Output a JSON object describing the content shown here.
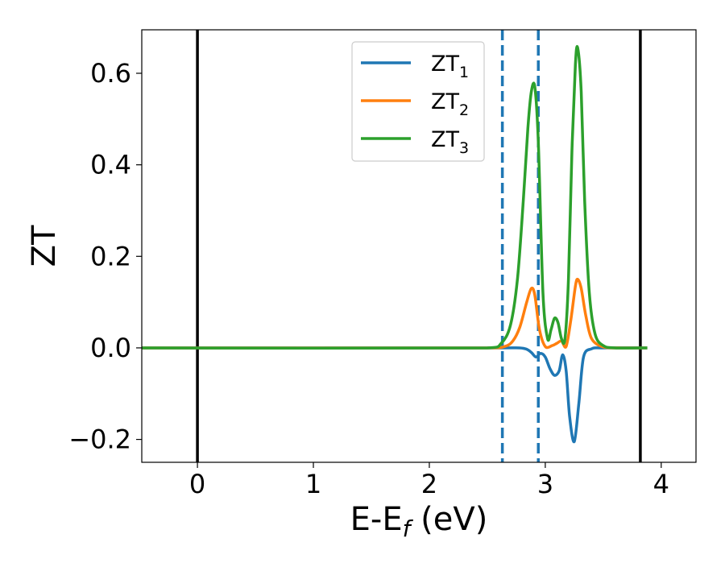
{
  "chart_data": {
    "type": "line",
    "title": "",
    "xlabel": {
      "main": "E-E",
      "sub": "f",
      "suffix": " (eV)"
    },
    "ylabel": "ZT",
    "xlim": [
      -0.48,
      4.3
    ],
    "ylim": [
      -0.25,
      0.695
    ],
    "xticks": [
      {
        "value": 0,
        "label": "0"
      },
      {
        "value": 1,
        "label": "1"
      },
      {
        "value": 2,
        "label": "2"
      },
      {
        "value": 3,
        "label": "3"
      },
      {
        "value": 4,
        "label": "4"
      }
    ],
    "yticks": [
      {
        "value": -0.2,
        "label": "−0.2"
      },
      {
        "value": 0.0,
        "label": "0.0"
      },
      {
        "value": 0.2,
        "label": "0.2"
      },
      {
        "value": 0.4,
        "label": "0.4"
      },
      {
        "value": 0.6,
        "label": "0.6"
      }
    ],
    "grid": false,
    "legend_position": "upper-center",
    "vlines_solid": [
      {
        "x": 0.0,
        "color": "#000000"
      },
      {
        "x": 3.82,
        "color": "#000000"
      }
    ],
    "vlines_dashed": [
      {
        "x": 2.63,
        "color": "#1f77b4"
      },
      {
        "x": 2.94,
        "color": "#1f77b4"
      }
    ],
    "series": [
      {
        "name": "ZT",
        "subscript": "1",
        "color": "#1f77b4",
        "x": [
          -0.48,
          2.6,
          2.78,
          2.84,
          2.88,
          2.92,
          2.96,
          3.0,
          3.04,
          3.08,
          3.12,
          3.15,
          3.18,
          3.21,
          3.25,
          3.29,
          3.33,
          3.4,
          3.5,
          3.88
        ],
        "y": [
          0.0,
          0.0,
          0.0,
          -0.003,
          -0.01,
          -0.02,
          -0.012,
          -0.02,
          -0.045,
          -0.06,
          -0.05,
          -0.015,
          -0.05,
          -0.15,
          -0.205,
          -0.12,
          -0.02,
          -0.002,
          0.0,
          0.0
        ]
      },
      {
        "name": "ZT",
        "subscript": "2",
        "color": "#ff7f0e",
        "x": [
          -0.48,
          2.5,
          2.65,
          2.72,
          2.78,
          2.84,
          2.88,
          2.91,
          2.95,
          3.0,
          3.06,
          3.1,
          3.14,
          3.18,
          3.22,
          3.26,
          3.28,
          3.31,
          3.35,
          3.4,
          3.5,
          3.65,
          3.88
        ],
        "y": [
          0.0,
          0.0,
          0.003,
          0.015,
          0.045,
          0.1,
          0.13,
          0.115,
          0.04,
          0.003,
          0.005,
          0.01,
          0.015,
          0.003,
          0.06,
          0.135,
          0.15,
          0.13,
          0.07,
          0.02,
          0.002,
          0.0,
          0.0
        ]
      },
      {
        "name": "ZT",
        "subscript": "3",
        "color": "#2ca02c",
        "x": [
          -0.48,
          2.5,
          2.62,
          2.7,
          2.76,
          2.81,
          2.85,
          2.88,
          2.91,
          2.94,
          2.98,
          3.02,
          3.05,
          3.08,
          3.11,
          3.14,
          3.17,
          3.2,
          3.23,
          3.26,
          3.28,
          3.31,
          3.34,
          3.38,
          3.43,
          3.5,
          3.6,
          3.88
        ],
        "y": [
          0.0,
          0.0,
          0.01,
          0.05,
          0.15,
          0.32,
          0.48,
          0.56,
          0.57,
          0.45,
          0.12,
          0.02,
          0.04,
          0.065,
          0.055,
          0.02,
          0.02,
          0.15,
          0.43,
          0.62,
          0.655,
          0.56,
          0.32,
          0.12,
          0.03,
          0.005,
          0.0,
          0.0
        ]
      }
    ]
  }
}
